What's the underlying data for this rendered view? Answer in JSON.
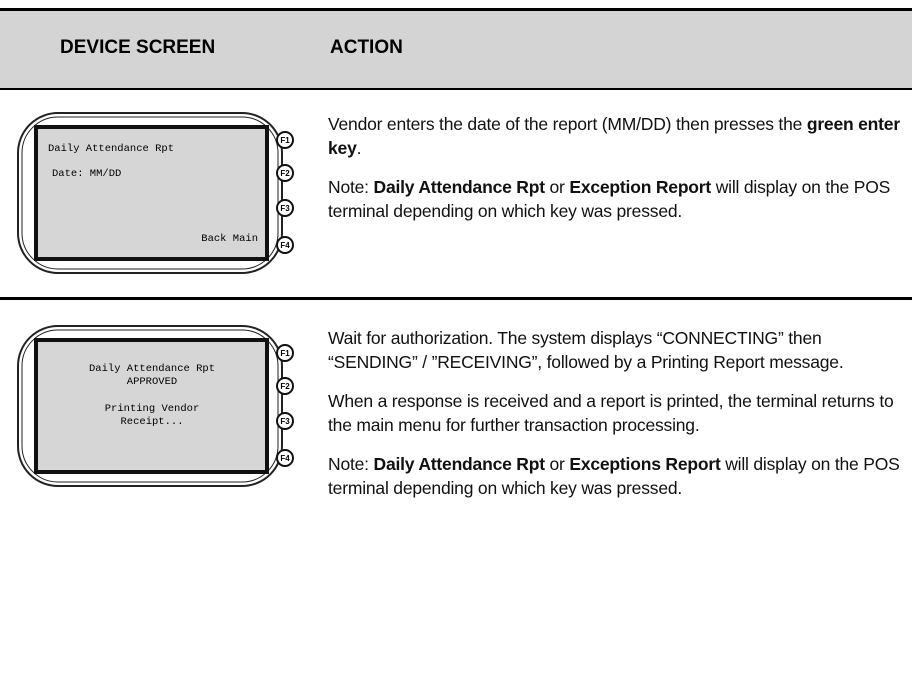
{
  "header": {
    "columns": [
      "DEVICE SCREEN",
      "ACTION"
    ]
  },
  "rows": [
    {
      "screen": {
        "lines": [
          "Daily Attendance Rpt",
          "Date: MM/DD",
          "Back Main"
        ],
        "keys": [
          "F1",
          "F2",
          "F3",
          "F4"
        ]
      },
      "action": [
        [
          {
            "text": "Vendor enters the date of the report (MM/DD) then presses the ",
            "bold": false
          },
          {
            "text": "green enter key",
            "bold": true
          },
          {
            "text": ".",
            "bold": false
          }
        ],
        [
          {
            "text": "Note: ",
            "bold": false
          },
          {
            "text": "Daily Attendance Rpt",
            "bold": true
          },
          {
            "text": " or ",
            "bold": false
          },
          {
            "text": "Exception Report",
            "bold": true
          },
          {
            "text": " will display on the POS terminal depending on which key was pressed.",
            "bold": false
          }
        ]
      ]
    },
    {
      "screen": {
        "lines": [
          "Daily Attendance Rpt",
          "APPROVED",
          "Printing Vendor",
          "Receipt..."
        ],
        "keys": [
          "F1",
          "F2",
          "F3",
          "F4"
        ]
      },
      "action": [
        [
          {
            "text": "Wait for authorization.  The system displays “CONNECTING” then “SENDING” / ”RECEIVING”, followed by a Printing Report message.",
            "bold": false
          }
        ],
        [
          {
            "text": "When a response is received and a report is printed, the terminal returns to the main menu for further transaction processing.",
            "bold": false
          }
        ],
        [
          {
            "text": "Note: ",
            "bold": false
          },
          {
            "text": "Daily Attendance Rpt",
            "bold": true
          },
          {
            "text": " or ",
            "bold": false
          },
          {
            "text": "Exceptions Report",
            "bold": true
          },
          {
            "text": " will display on the POS terminal depending on which key was pressed.",
            "bold": false
          }
        ]
      ]
    }
  ]
}
